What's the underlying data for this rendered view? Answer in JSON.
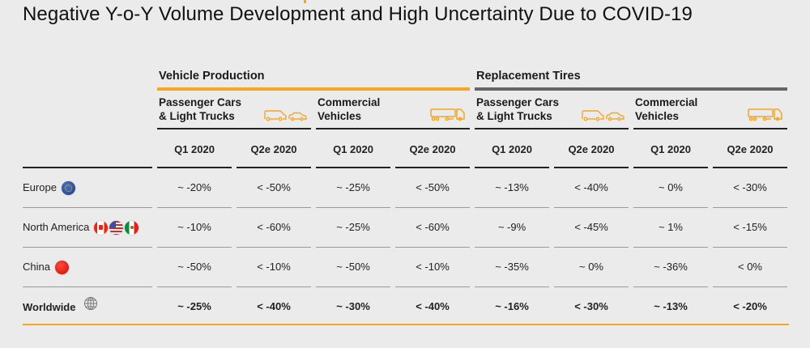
{
  "header": {
    "cut_text": "Negative Y-o-Y Volume Development and High Uncertainty Due to COVID-19",
    "title": "Negative Y-o-Y Volume Development and High Uncertainty Due to COVID-19"
  },
  "colors": {
    "accent": "#f5a623",
    "secondary": "#666666",
    "background": "#ebebeb"
  },
  "groups": [
    {
      "label": "Vehicle Production"
    },
    {
      "label": "Replacement Tires"
    }
  ],
  "subgroups": [
    {
      "line1": "Passenger Cars",
      "line2": "& Light Trucks",
      "icon": "car-and-van-icon"
    },
    {
      "line1": "Commercial",
      "line2": "Vehicles",
      "icon": "truck-icon"
    },
    {
      "line1": "Passenger Cars",
      "line2": "& Light Trucks",
      "icon": "car-and-van-icon"
    },
    {
      "line1": "Commercial",
      "line2": "Vehicles",
      "icon": "truck-icon"
    }
  ],
  "columns": [
    "Q1 2020",
    "Q2e 2020",
    "Q1 2020",
    "Q2e 2020",
    "Q1 2020",
    "Q2e 2020",
    "Q1 2020",
    "Q2e 2020"
  ],
  "rows": [
    {
      "region": "Europe",
      "flags": [
        "eu"
      ],
      "values": [
        "~ -20%",
        "< -50%",
        "~ -25%",
        "< -50%",
        "~ -13%",
        "< -40%",
        "~ 0%",
        "< -30%"
      ]
    },
    {
      "region": "North America",
      "flags": [
        "ca",
        "us",
        "mx"
      ],
      "values": [
        "~ -10%",
        "< -60%",
        "~ -25%",
        "< -60%",
        "~ -9%",
        "< -45%",
        "~ 1%",
        "< -15%"
      ]
    },
    {
      "region": "China",
      "flags": [
        "cn"
      ],
      "values": [
        "~ -50%",
        "< -10%",
        "~ -50%",
        "< -10%",
        "~ -35%",
        "~ 0%",
        "~ -36%",
        "< 0%"
      ]
    },
    {
      "region": "Worldwide",
      "flags": [
        "globe"
      ],
      "values": [
        "~ -25%",
        "< -40%",
        "~ -30%",
        "< -40%",
        "~ -16%",
        "< -30%",
        "~ -13%",
        "< -20%"
      ]
    }
  ]
}
